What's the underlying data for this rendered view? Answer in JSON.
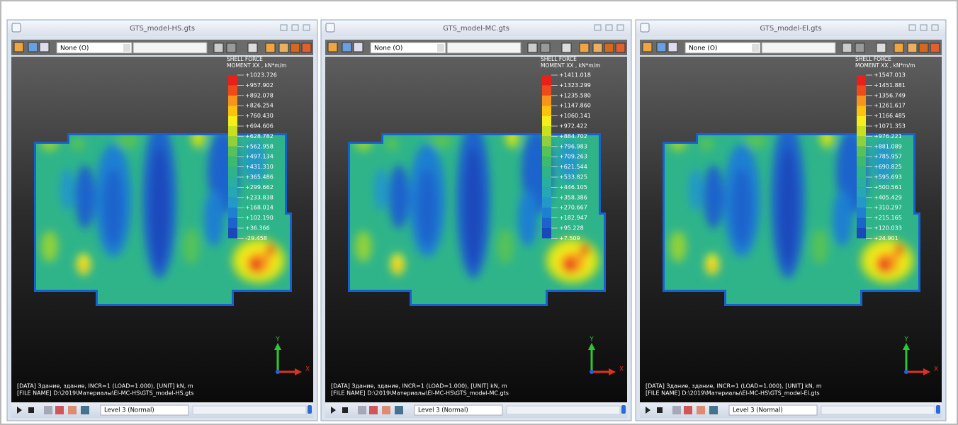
{
  "windows": [
    {
      "title": "GTS_model-HS.gts",
      "view_dropdown": "None (O)",
      "legend_title": [
        "SHELL FORCE",
        "MOMENT XX , kN*m/m"
      ],
      "legend_values": [
        "+1023.726",
        "+957.902",
        "+892.078",
        "+826.254",
        "+760.430",
        "+694.606",
        "+628.782",
        "+562.958",
        "+497.134",
        "+431.310",
        "+365.486",
        "+299.662",
        "+233.838",
        "+168.014",
        "+102.190",
        "+36.366",
        "-29.458"
      ],
      "axis_labels": {
        "y": "Y",
        "x": "X"
      },
      "info": [
        "[DATA] Здание, здание, INCR=1 (LOAD=1.000), [UNIT] kN, m",
        "[FILE NAME] D:\\2019\\Материалы\\El-MC-HS\\GTS_model-HS.gts"
      ],
      "level": "Level 3 (Normal)"
    },
    {
      "title": "GTS_model-MC.gts",
      "view_dropdown": "None (O)",
      "legend_title": [
        "SHELL FORCE",
        "MOMENT XX , kN*m/m"
      ],
      "legend_values": [
        "+1411.018",
        "+1323.299",
        "+1235.580",
        "+1147.860",
        "+1060.141",
        "+972.422",
        "+884.702",
        "+796.983",
        "+709.263",
        "+621.544",
        "+533.825",
        "+446.105",
        "+358.386",
        "+270.667",
        "+182.947",
        "+95.228",
        "+7.509"
      ],
      "axis_labels": {
        "y": "Y",
        "x": "X"
      },
      "info": [
        "[DATA] Здание, здание, INCR=1 (LOAD=1.000), [UNIT] kN, m",
        "[FILE NAME] D:\\2019\\Материалы\\El-MC-HS\\GTS_model-MC.gts"
      ],
      "level": "Level 3 (Normal)"
    },
    {
      "title": "GTS_model-El.gts",
      "view_dropdown": "None (O)",
      "legend_title": [
        "SHELL FORCE",
        "MOMENT XX , kN*m/m"
      ],
      "legend_values": [
        "+1547.013",
        "+1451.881",
        "+1356.749",
        "+1261.617",
        "+1166.485",
        "+1071.353",
        "+976.221",
        "+881.089",
        "+785.957",
        "+690.825",
        "+595.693",
        "+500.561",
        "+405.429",
        "+310.297",
        "+215.165",
        "+120.033",
        "+24.901"
      ],
      "axis_labels": {
        "y": "Y",
        "x": "X"
      },
      "info": [
        "[DATA] Здание, здание, INCR=1 (LOAD=1.000), [UNIT] kN, m",
        "[FILE NAME] D:\\2019\\Материалы\\El-MC-HS\\GTS_model-El.gts"
      ],
      "level": "Level 3 (Normal)"
    }
  ]
}
